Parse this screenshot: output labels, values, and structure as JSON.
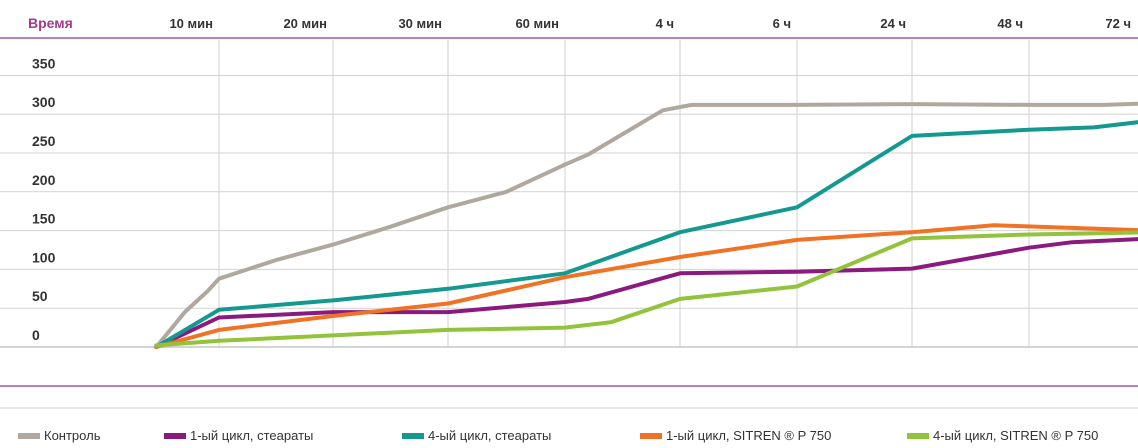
{
  "chart_data": {
    "type": "line",
    "xlabel": "Время",
    "categories": [
      "10 мин",
      "20 мин",
      "30 мин",
      "60 мин",
      "4 ч",
      "6 ч",
      "24 ч",
      "48 ч",
      "72 ч"
    ],
    "y_ticks": [
      350,
      300,
      250,
      200,
      150,
      100,
      50,
      0
    ],
    "ylim": [
      0,
      370
    ],
    "grid": true,
    "legend_position": "bottom",
    "series": [
      {
        "name": "Контроль",
        "color": "#b0a89e",
        "points": [
          [
            -0.55,
            0
          ],
          [
            -0.3,
            45
          ],
          [
            -0.1,
            72
          ],
          [
            0.0,
            88
          ],
          [
            0.5,
            112
          ],
          [
            1.0,
            132
          ],
          [
            1.5,
            155
          ],
          [
            2.0,
            180
          ],
          [
            2.5,
            200
          ],
          [
            3.0,
            235
          ],
          [
            3.2,
            248
          ],
          [
            3.85,
            305
          ],
          [
            4.1,
            312
          ],
          [
            5.0,
            312
          ],
          [
            6.0,
            313
          ],
          [
            7.0,
            312
          ],
          [
            7.7,
            312
          ],
          [
            8.15,
            314
          ]
        ]
      },
      {
        "name": "1-ый цикл, стеараты",
        "color": "#8b1a7e",
        "points": [
          [
            -0.55,
            0
          ],
          [
            0.0,
            38
          ],
          [
            1.0,
            45
          ],
          [
            2.0,
            45
          ],
          [
            3.0,
            58
          ],
          [
            3.2,
            62
          ],
          [
            4.0,
            95
          ],
          [
            5.0,
            97
          ],
          [
            6.0,
            101
          ],
          [
            7.0,
            128
          ],
          [
            7.4,
            135
          ],
          [
            8.15,
            140
          ]
        ]
      },
      {
        "name": "4-ый цикл, стеараты",
        "color": "#13998f",
        "points": [
          [
            -0.55,
            0
          ],
          [
            0.0,
            48
          ],
          [
            1.0,
            60
          ],
          [
            2.0,
            75
          ],
          [
            3.0,
            95
          ],
          [
            4.0,
            148
          ],
          [
            5.0,
            180
          ],
          [
            6.0,
            272
          ],
          [
            7.0,
            280
          ],
          [
            7.6,
            283
          ],
          [
            8.15,
            292
          ]
        ]
      },
      {
        "name": "1-ый цикл, SITREN ® P 750",
        "color": "#f07224",
        "points": [
          [
            -0.55,
            0
          ],
          [
            0.0,
            22
          ],
          [
            1.0,
            40
          ],
          [
            2.0,
            56
          ],
          [
            3.0,
            90
          ],
          [
            4.0,
            116
          ],
          [
            5.0,
            138
          ],
          [
            6.0,
            148
          ],
          [
            6.7,
            157
          ],
          [
            8.15,
            150
          ]
        ]
      },
      {
        "name": "4-ый цикл, SITREN ® P 750",
        "color": "#93c23c",
        "points": [
          [
            -0.55,
            2
          ],
          [
            0.0,
            8
          ],
          [
            1.0,
            15
          ],
          [
            2.0,
            22
          ],
          [
            3.0,
            25
          ],
          [
            3.4,
            32
          ],
          [
            4.0,
            62
          ],
          [
            5.0,
            78
          ],
          [
            6.0,
            140
          ],
          [
            7.0,
            145
          ],
          [
            8.15,
            148
          ]
        ]
      }
    ]
  }
}
